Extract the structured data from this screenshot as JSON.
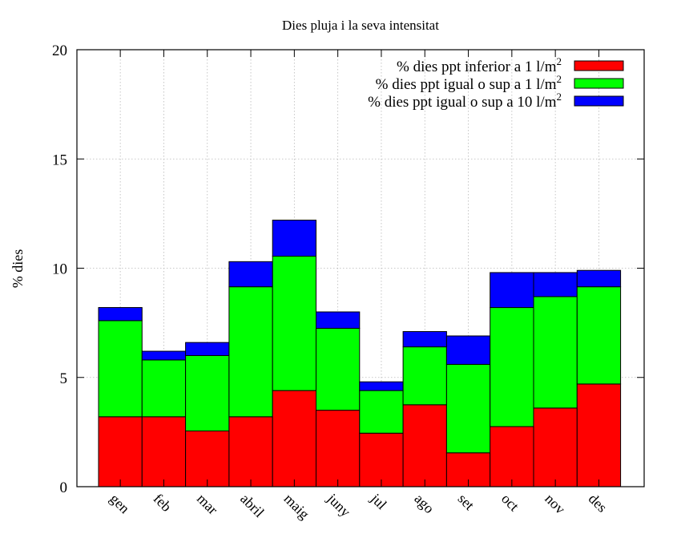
{
  "chart_data": {
    "type": "bar",
    "stacked": true,
    "title": "Dies pluja i la seva intensitat",
    "xlabel": "",
    "ylabel": "% dies",
    "ylim": [
      0,
      20
    ],
    "yticks": [
      0,
      5,
      10,
      15,
      20
    ],
    "grid": true,
    "legend_position": "top-right",
    "categories": [
      "gen",
      "feb",
      "mar",
      "abril",
      "maig",
      "juny",
      "jul",
      "ago",
      "set",
      "oct",
      "nov",
      "des"
    ],
    "series": [
      {
        "name": "% dies ppt inferior a 1 l/m",
        "superscript": "2",
        "color": "#ff0000",
        "values": [
          3.2,
          3.2,
          2.55,
          3.2,
          4.4,
          3.5,
          2.45,
          3.75,
          1.55,
          2.75,
          3.6,
          4.7
        ]
      },
      {
        "name": "% dies ppt igual o sup a 1 l/m",
        "superscript": "2",
        "color": "#00ff00",
        "values": [
          4.4,
          2.6,
          3.45,
          5.95,
          6.15,
          3.75,
          1.95,
          2.65,
          4.05,
          5.45,
          5.1,
          4.45
        ]
      },
      {
        "name": "% dies ppt igual o sup a 10 l/m",
        "superscript": "2",
        "color": "#0000ff",
        "values": [
          0.6,
          0.4,
          0.6,
          1.15,
          1.65,
          0.75,
          0.4,
          0.7,
          1.3,
          1.6,
          1.1,
          0.75
        ]
      }
    ]
  }
}
